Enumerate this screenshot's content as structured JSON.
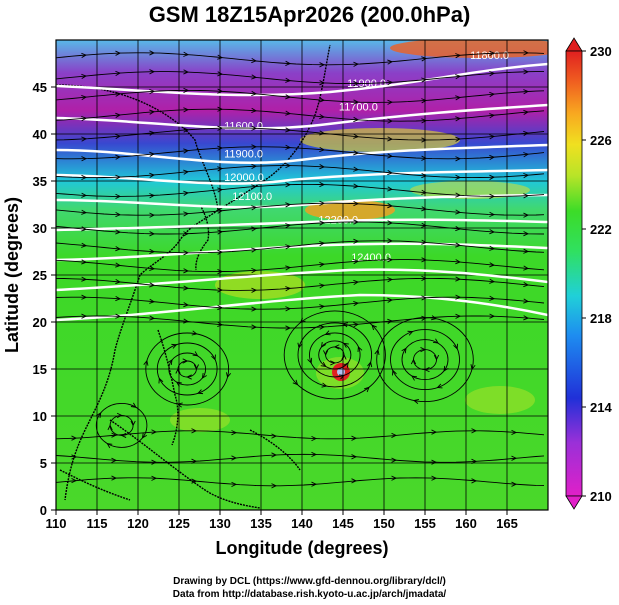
{
  "title": "GSM 18Z15Apr2026 (200.0hPa)",
  "x_axis": {
    "title": "Longitude (degrees)",
    "range": [
      110,
      170
    ],
    "ticks": [
      110,
      115,
      120,
      125,
      130,
      135,
      140,
      145,
      150,
      155,
      160,
      165
    ]
  },
  "y_axis": {
    "title": "Latitude  (degrees)",
    "range": [
      0,
      50
    ],
    "ticks": [
      0,
      5,
      10,
      15,
      20,
      25,
      30,
      35,
      40,
      45
    ]
  },
  "colorbar": {
    "range": [
      210,
      230
    ],
    "ticks": [
      210,
      214,
      218,
      222,
      226,
      230
    ],
    "colors": [
      "#e020c8",
      "#9a30d8",
      "#2030d8",
      "#1e8cf0",
      "#20d0d8",
      "#30e060",
      "#3cdc28",
      "#b8e428",
      "#f0e020",
      "#f8a820",
      "#f06020",
      "#e02020"
    ]
  },
  "contour_labels": [
    {
      "text": "11600.0",
      "lon": 130.5,
      "lat": 40.5
    },
    {
      "text": "11700.0",
      "lon": 144.5,
      "lat": 42.5
    },
    {
      "text": "11800.0",
      "lon": 160.5,
      "lat": 48.0
    },
    {
      "text": "11900.0",
      "lon": 145.5,
      "lat": 45.0
    },
    {
      "text": "11900.0",
      "lon": 130.5,
      "lat": 37.5
    },
    {
      "text": "12000.0",
      "lon": 130.5,
      "lat": 35.0
    },
    {
      "text": "12100.0",
      "lon": 131.5,
      "lat": 33.0
    },
    {
      "text": "12200.0",
      "lon": 142.0,
      "lat": 30.5
    },
    {
      "text": "12400.0",
      "lon": 146.0,
      "lat": 26.5
    }
  ],
  "cyclone_center": {
    "lon": 144.0,
    "lat": 16.5
  },
  "credits": [
    "Drawing by DCL (https://www.gfd-dennou.org/library/dcl/)",
    "Data from http://database.rish.kyoto-u.ac.jp/arch/jmadata/"
  ],
  "colors": {
    "background_field": "#4ad82a",
    "contour": "#ffffff",
    "streamline": "#000000"
  }
}
